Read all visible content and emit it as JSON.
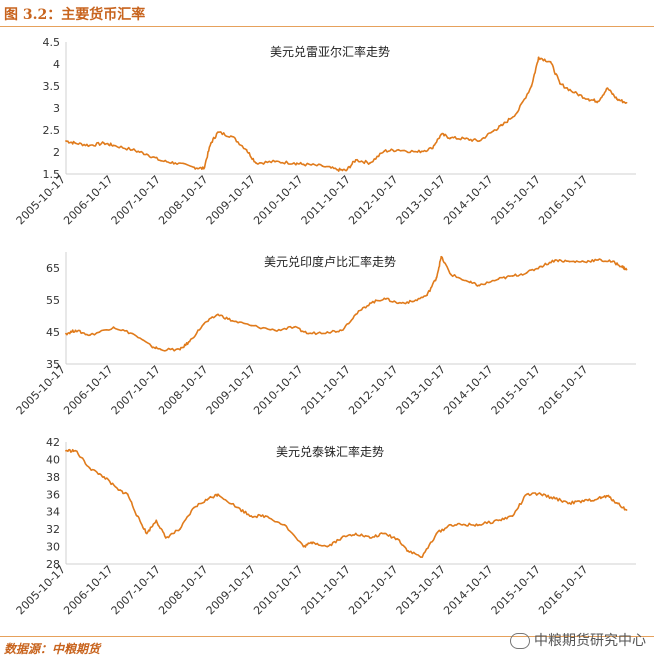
{
  "header": {
    "title": "图 3.2：主要货币汇率"
  },
  "footer": {
    "source": "数据源：中粮期货",
    "watermark": "中粮期货研究中心"
  },
  "colors": {
    "line": "#e07b1c",
    "axis": "#d0d0d0",
    "accent": "#c8641e"
  },
  "chart_data": [
    {
      "type": "line",
      "title": "美元兑雷亚尔汇率走势",
      "ylim": [
        1.5,
        4.5
      ],
      "yticks": [
        "1.5",
        "2",
        "2.5",
        "3",
        "3.5",
        "4",
        "4.5"
      ],
      "xticks": [
        "2005-10-17",
        "2006-10-17",
        "2007-10-17",
        "2008-10-17",
        "2009-10-17",
        "2010-10-17",
        "2011-10-17",
        "2012-10-17",
        "2013-10-17",
        "2014-10-17",
        "2015-10-17",
        "2016-10-17"
      ],
      "x": [
        2005.8,
        2006.0,
        2006.3,
        2006.6,
        2006.8,
        2007.2,
        2007.5,
        2007.8,
        2008.1,
        2008.5,
        2008.7,
        2008.85,
        2009.0,
        2009.3,
        2009.6,
        2009.8,
        2010.2,
        2010.6,
        2010.8,
        2011.2,
        2011.5,
        2011.7,
        2011.9,
        2012.2,
        2012.5,
        2012.8,
        2013.2,
        2013.5,
        2013.7,
        2013.9,
        2014.2,
        2014.5,
        2014.8,
        2015.0,
        2015.3,
        2015.6,
        2015.75,
        2016.0,
        2016.2,
        2016.5,
        2016.8,
        2017.0,
        2017.2,
        2017.4,
        2017.6
      ],
      "values": [
        2.25,
        2.2,
        2.15,
        2.2,
        2.15,
        2.05,
        1.95,
        1.8,
        1.75,
        1.65,
        1.62,
        2.2,
        2.45,
        2.35,
        2.05,
        1.75,
        1.78,
        1.75,
        1.72,
        1.68,
        1.6,
        1.58,
        1.82,
        1.75,
        2.02,
        2.05,
        2.0,
        2.08,
        2.4,
        2.32,
        2.3,
        2.25,
        2.48,
        2.62,
        2.9,
        3.5,
        4.15,
        4.05,
        3.55,
        3.35,
        3.2,
        3.15,
        3.45,
        3.2,
        3.12
      ]
    },
    {
      "type": "line",
      "title": "美元兑印度卢比汇率走势",
      "ylim": [
        35,
        70
      ],
      "yticks": [
        "35",
        "45",
        "55",
        "65"
      ],
      "xticks": [
        "2005-10-17",
        "2006-10-17",
        "2007-10-17",
        "2008-10-17",
        "2009-10-17",
        "2010-10-17",
        "2011-10-17",
        "2012-10-17",
        "2013-10-17",
        "2014-10-17",
        "2015-10-17",
        "2016-10-17"
      ],
      "x": [
        2005.8,
        2006.0,
        2006.3,
        2006.8,
        2007.2,
        2007.6,
        2007.8,
        2008.2,
        2008.4,
        2008.7,
        2009.0,
        2009.3,
        2009.7,
        2010.2,
        2010.6,
        2010.9,
        2011.3,
        2011.6,
        2011.9,
        2012.2,
        2012.5,
        2012.8,
        2013.1,
        2013.4,
        2013.6,
        2013.7,
        2013.9,
        2014.3,
        2014.5,
        2014.9,
        2015.2,
        2015.5,
        2015.8,
        2016.1,
        2016.4,
        2016.7,
        2017.0,
        2017.3,
        2017.5,
        2017.6
      ],
      "values": [
        44.5,
        45.5,
        44.0,
        46.5,
        44.5,
        40.5,
        39.5,
        39.5,
        42.0,
        47.5,
        50.5,
        48.5,
        47.0,
        45.5,
        46.5,
        44.5,
        45.0,
        45.5,
        50.5,
        54.0,
        55.5,
        54.0,
        54.5,
        56.5,
        62.0,
        68.5,
        63.0,
        60.5,
        59.5,
        61.5,
        62.5,
        63.5,
        65.5,
        67.5,
        67.0,
        67.0,
        67.5,
        67.0,
        65.5,
        64.5
      ]
    },
    {
      "type": "line",
      "title": "美元兑泰铢汇率走势",
      "ylim": [
        28,
        42
      ],
      "yticks": [
        "28",
        "30",
        "32",
        "34",
        "36",
        "38",
        "40",
        "42"
      ],
      "xticks": [
        "2005-10-17",
        "2006-10-17",
        "2007-10-17",
        "2008-10-17",
        "2009-10-17",
        "2010-10-17",
        "2011-10-17",
        "2012-10-17",
        "2013-10-17",
        "2014-10-17",
        "2015-10-17",
        "2016-10-17"
      ],
      "x": [
        2005.8,
        2006.0,
        2006.3,
        2006.6,
        2006.9,
        2007.1,
        2007.3,
        2007.5,
        2007.7,
        2007.9,
        2008.2,
        2008.5,
        2008.8,
        2009.0,
        2009.4,
        2009.7,
        2010.0,
        2010.4,
        2010.8,
        2011.0,
        2011.3,
        2011.6,
        2011.9,
        2012.2,
        2012.5,
        2012.8,
        2013.0,
        2013.3,
        2013.6,
        2013.9,
        2014.2,
        2014.5,
        2014.9,
        2015.2,
        2015.5,
        2015.8,
        2016.1,
        2016.4,
        2016.7,
        2017.0,
        2017.2,
        2017.4,
        2017.6
      ],
      "values": [
        41.0,
        41.0,
        39.0,
        38.0,
        36.5,
        36.0,
        33.5,
        31.5,
        33.0,
        31.0,
        32.0,
        34.5,
        35.5,
        36.0,
        34.5,
        33.5,
        33.5,
        32.5,
        30.0,
        30.5,
        30.0,
        31.0,
        31.5,
        31.0,
        31.5,
        30.8,
        29.5,
        28.8,
        31.5,
        32.5,
        32.5,
        32.5,
        33.0,
        33.5,
        36.0,
        36.0,
        35.5,
        35.0,
        35.2,
        35.5,
        35.8,
        35.0,
        34.2
      ]
    }
  ]
}
